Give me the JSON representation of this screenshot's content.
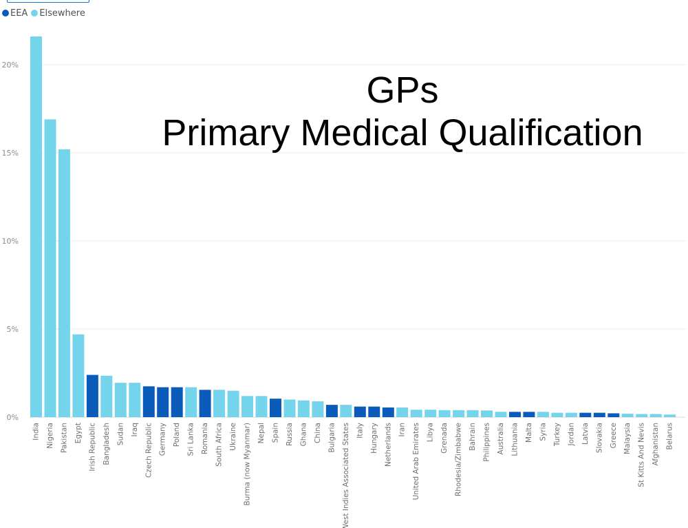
{
  "chart_data": {
    "type": "bar",
    "title": "GPs",
    "subtitle": "Primary Medical Qualification",
    "xlabel": "",
    "ylabel": "",
    "ylim": [
      0,
      22
    ],
    "y_ticks": [
      0,
      5,
      10,
      15,
      20
    ],
    "y_tick_suffix": "%",
    "grid": true,
    "legend_position": "top-left",
    "legend": [
      {
        "name": "EEA",
        "color": "#0b5cba"
      },
      {
        "name": "Elsewhere",
        "color": "#74d4ec"
      }
    ],
    "categories": [
      "India",
      "Nigeria",
      "Pakistan",
      "Egypt",
      "Irish Republic",
      "Bangladesh",
      "Sudan",
      "Iraq",
      "Czech Republic",
      "Germany",
      "Poland",
      "Sri Lanka",
      "Romania",
      "South Africa",
      "Ukraine",
      "Burma (now Myanmar)",
      "Nepal",
      "Spain",
      "Russia",
      "Ghana",
      "China",
      "Bulgaria",
      "West Indies Associated States",
      "Italy",
      "Hungary",
      "Netherlands",
      "Iran",
      "United Arab Emirates",
      "Libya",
      "Grenada",
      "Rhodesia/Zimbabwe",
      "Bahrain",
      "Philippines",
      "Australia",
      "Lithuania",
      "Malta",
      "Syria",
      "Turkey",
      "Jordan",
      "Latvia",
      "Slovakia",
      "Greece",
      "Malaysia",
      "St Kitts And Nevis",
      "Afghanistan",
      "Belarus"
    ],
    "values": [
      21.6,
      16.9,
      15.2,
      4.7,
      2.4,
      2.35,
      1.95,
      1.95,
      1.75,
      1.7,
      1.7,
      1.7,
      1.55,
      1.55,
      1.5,
      1.2,
      1.2,
      1.05,
      1.0,
      0.95,
      0.9,
      0.7,
      0.7,
      0.6,
      0.6,
      0.55,
      0.55,
      0.42,
      0.42,
      0.4,
      0.4,
      0.4,
      0.38,
      0.3,
      0.3,
      0.3,
      0.3,
      0.25,
      0.25,
      0.25,
      0.25,
      0.22,
      0.2,
      0.18,
      0.18,
      0.15
    ],
    "groups": [
      "Elsewhere",
      "Elsewhere",
      "Elsewhere",
      "Elsewhere",
      "EEA",
      "Elsewhere",
      "Elsewhere",
      "Elsewhere",
      "EEA",
      "EEA",
      "EEA",
      "Elsewhere",
      "EEA",
      "Elsewhere",
      "Elsewhere",
      "Elsewhere",
      "Elsewhere",
      "EEA",
      "Elsewhere",
      "Elsewhere",
      "Elsewhere",
      "EEA",
      "Elsewhere",
      "EEA",
      "EEA",
      "EEA",
      "Elsewhere",
      "Elsewhere",
      "Elsewhere",
      "Elsewhere",
      "Elsewhere",
      "Elsewhere",
      "Elsewhere",
      "Elsewhere",
      "EEA",
      "EEA",
      "Elsewhere",
      "Elsewhere",
      "Elsewhere",
      "EEA",
      "EEA",
      "EEA",
      "Elsewhere",
      "Elsewhere",
      "Elsewhere",
      "Elsewhere"
    ]
  }
}
